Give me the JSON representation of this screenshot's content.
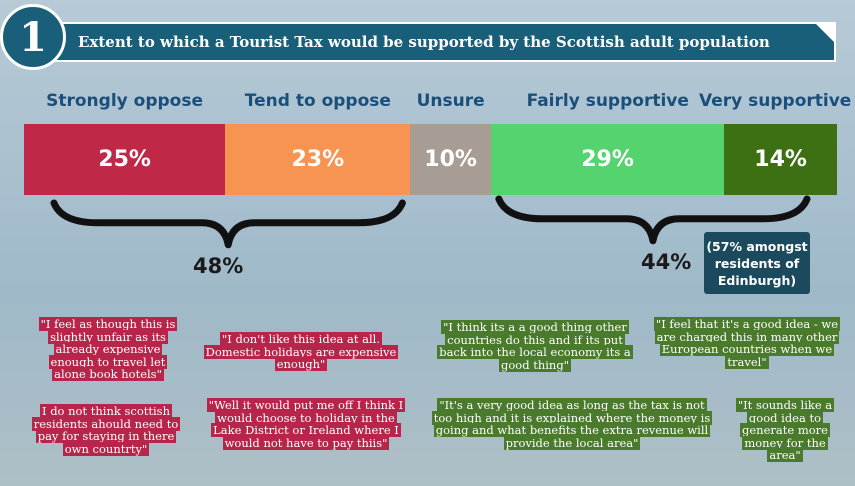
{
  "badge": {
    "number": "1"
  },
  "header": {
    "title": "Extent to which a Tourist Tax would be supported by the Scottish adult population"
  },
  "chart_data": {
    "type": "bar",
    "layout": "stacked-horizontal",
    "categories": [
      "Strongly oppose",
      "Tend to oppose",
      "Unsure",
      "Fairly supportive",
      "Very supportive"
    ],
    "values": [
      25,
      23,
      10,
      29,
      14
    ],
    "value_labels": [
      "25%",
      "23%",
      "10%",
      "29%",
      "14%"
    ],
    "colors": [
      "#c02848",
      "#f89451",
      "#a79d94",
      "#55d36f",
      "#3d7013"
    ],
    "groups": [
      {
        "label": "48%",
        "members": [
          "Strongly oppose",
          "Tend to oppose"
        ]
      },
      {
        "label": "44%",
        "members": [
          "Fairly supportive",
          "Very supportive"
        ]
      }
    ],
    "annotation": "(57% amongst residents of Edinburgh)"
  },
  "quotes": {
    "oppose": [
      "\"I feel as though this is slightly unfair as its already expensive enough to travel let alone book hotels\"",
      "\"I don't like this idea at all. Domestic holidays are expensive enough\"",
      "I do not think scottish residents ahould need to pay for staying in there own countrty\"",
      "\"Well it would put me off I think I would choose to holiday in the Lake District or Ireland where I would not have to pay thiis\""
    ],
    "support": [
      "\"I think its a a good thing other countries do this and if its put back into the local economy its a good thing\"",
      "\"I feel that it's a good idea - we are charged this in many other European countries when we travel\"",
      "\"It's a very good idea as long as the tax is not too high and it is explained where the money is going and what benefits the extra revenue will provide the local area\"",
      "\"It sounds like a good idea to generate more money for the area\""
    ]
  }
}
